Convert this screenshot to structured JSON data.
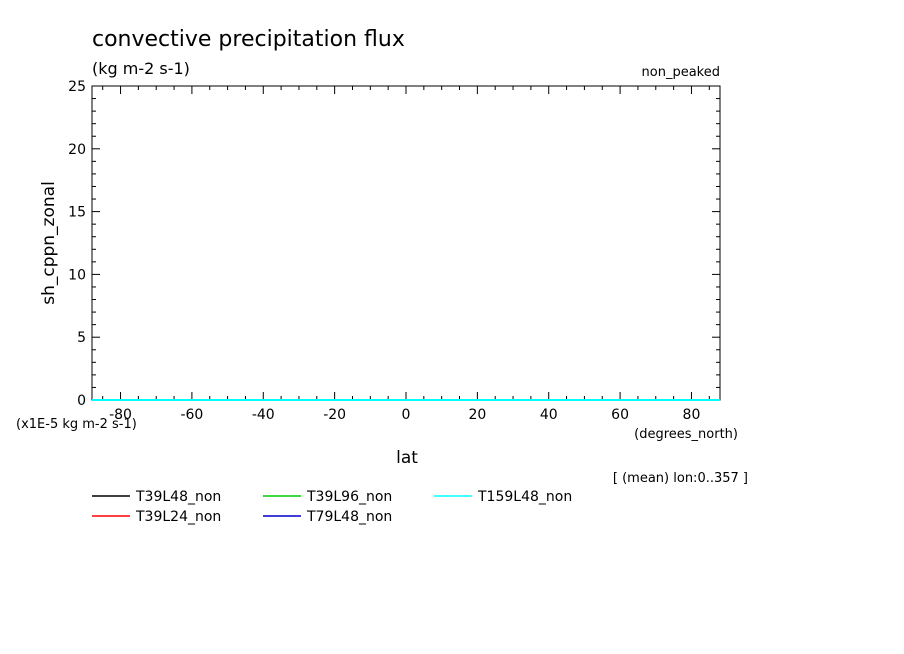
{
  "chart_data": {
    "type": "line",
    "title": "convective precipitation flux",
    "subtitle": "(kg m-2 s-1)",
    "top_right_label": "non_peaked",
    "ylabel": "sh_cppn_zonal",
    "xlabel": "lat",
    "x_units": "(degrees_north)",
    "y_scale_note": "(x1E-5 kg m-2 s-1)",
    "footnote": "[ (mean) lon:0..357 ]",
    "xlim": [
      -88,
      88
    ],
    "ylim": [
      0,
      25
    ],
    "x_ticks": [
      -80,
      -60,
      -40,
      -20,
      0,
      20,
      40,
      60,
      80
    ],
    "y_ticks": [
      0,
      5,
      10,
      15,
      20,
      25
    ],
    "x_tick_labels": [
      "-80",
      "-60",
      "-40",
      "-20",
      "0",
      "20",
      "40",
      "60",
      "80"
    ],
    "y_tick_labels": [
      "0",
      "5",
      "10",
      "15",
      "20",
      "25"
    ],
    "grid": false,
    "legend_position": "bottom",
    "series": [
      {
        "name": "T39L48_non",
        "color": "#000000",
        "x": [
          -88,
          88
        ],
        "y": [
          0,
          0
        ]
      },
      {
        "name": "T39L24_non",
        "color": "#ff0000",
        "x": [
          -88,
          88
        ],
        "y": [
          0,
          0
        ]
      },
      {
        "name": "T39L96_non",
        "color": "#00cc00",
        "x": [
          -88,
          88
        ],
        "y": [
          0,
          0
        ]
      },
      {
        "name": "T79L48_non",
        "color": "#0000cc",
        "x": [
          -88,
          88
        ],
        "y": [
          0,
          0
        ]
      },
      {
        "name": "T159L48_non",
        "color": "#00ffff",
        "x": [
          -88,
          88
        ],
        "y": [
          0,
          0
        ]
      }
    ]
  }
}
